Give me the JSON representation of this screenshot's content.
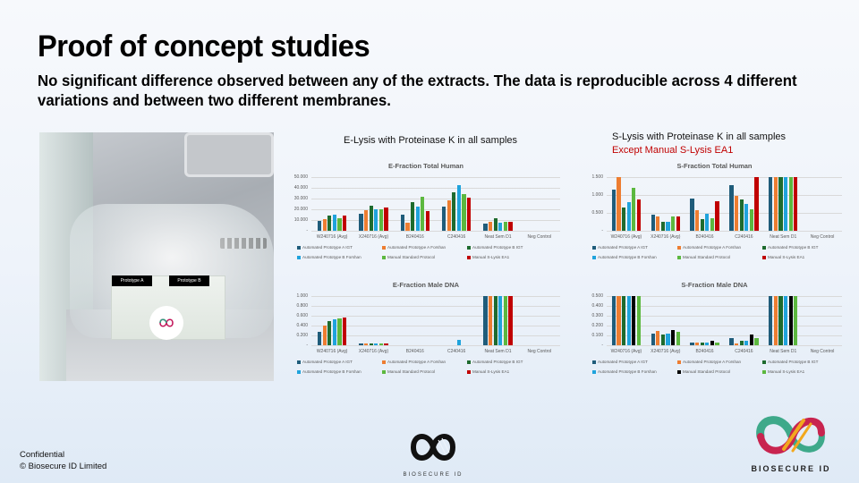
{
  "slide": {
    "title": "Proof of concept studies",
    "subtitle": "No significant difference observed between any of the extracts.  The data is reproducible across 4 different variations and between two different membranes."
  },
  "photo": {
    "label_a": "Prototype A",
    "label_b": "Prototype B"
  },
  "left_heading": "E-Lysis with Proteinase K in all samples",
  "right_heading": {
    "line1": "S-Lysis with Proteinase K in all samples",
    "line2": "Except Manual S-Lysis EA1"
  },
  "footer": {
    "line1": "Confidential",
    "line2": "© Biosecure ID Limited",
    "logo_center_text": "BIOSECURE ID",
    "logo_right_text": "BIOSECURE ID"
  },
  "colors": {
    "accent_red": "#c00000",
    "series_dark_blue": "#1f5c7a",
    "series_orange": "#ed7d31",
    "series_dark_green": "#1e6b2e",
    "series_light_blue": "#1fa3dc",
    "series_light_green": "#5cb83f",
    "series_red": "#c00000",
    "series_black": "#000000"
  },
  "chart_data": [
    {
      "type": "bar",
      "title": "E-Fraction Total Human",
      "xlabel": "",
      "ylabel": "",
      "ylim": [
        0,
        50
      ],
      "yticks": [
        "50.000",
        "40.000",
        "30.000",
        "20.000",
        "10.000",
        "-"
      ],
      "grid": true,
      "legend_position": "bottom",
      "categories": [
        "W240716 (Avg)",
        "X240716 (Avg)",
        "B240416",
        "C240416",
        "Neat Sem D1",
        "Neg Control"
      ],
      "series": [
        {
          "name": "Automated Prototype A IGT",
          "color": "#1f5c7a",
          "values": [
            9.5,
            16,
            15,
            22.5,
            7,
            0
          ]
        },
        {
          "name": "Automated Prototype A Forshan",
          "color": "#ed7d31",
          "values": [
            11,
            19.5,
            7.5,
            28.5,
            8.5,
            0
          ]
        },
        {
          "name": "Automated Prototype B IGT",
          "color": "#1e6b2e",
          "values": [
            14.5,
            23,
            27,
            36,
            12,
            0
          ]
        },
        {
          "name": "Automated Prototype B Forshan",
          "color": "#1fa3dc",
          "values": [
            15,
            20,
            22.5,
            42.5,
            7.5,
            0
          ]
        },
        {
          "name": "Manual Standard Protocol",
          "color": "#5cb83f",
          "values": [
            12,
            20,
            32,
            34,
            8.5,
            0
          ]
        },
        {
          "name": "Manual S-Lysis EA1",
          "color": "#c00000",
          "values": [
            14.5,
            22,
            18,
            31,
            8.5,
            0
          ]
        }
      ]
    },
    {
      "type": "bar",
      "title": "E-Fraction Male DNA",
      "xlabel": "",
      "ylabel": "",
      "ylim": [
        0,
        1.0
      ],
      "yticks": [
        "1.000",
        "0.800",
        "0.600",
        "0.400",
        "0.200",
        "-"
      ],
      "grid": true,
      "legend_position": "bottom",
      "categories": [
        "W240716 (Avg)",
        "X240716 (Avg)",
        "B240416",
        "C240416",
        "Neat Sem D1",
        "Neg Control"
      ],
      "series": [
        {
          "name": "Automated Prototype A IGT",
          "color": "#1f5c7a",
          "values": [
            0.28,
            0.03,
            0,
            0,
            1.0,
            0
          ]
        },
        {
          "name": "Automated Prototype A Forshan",
          "color": "#ed7d31",
          "values": [
            0.4,
            0.03,
            0,
            0,
            1.0,
            0
          ]
        },
        {
          "name": "Automated Prototype B IGT",
          "color": "#1e6b2e",
          "values": [
            0.49,
            0.03,
            0,
            0,
            1.0,
            0
          ]
        },
        {
          "name": "Automated Prototype B Forshan",
          "color": "#1fa3dc",
          "values": [
            0.52,
            0.03,
            0,
            0.11,
            1.0,
            0
          ]
        },
        {
          "name": "Manual Standard Protocol",
          "color": "#5cb83f",
          "values": [
            0.54,
            0.03,
            0,
            0,
            1.0,
            0
          ]
        },
        {
          "name": "Manual S-Lysis EA1",
          "color": "#c00000",
          "values": [
            0.56,
            0.03,
            0,
            0,
            1.0,
            0
          ]
        }
      ]
    },
    {
      "type": "bar",
      "title": "S-Fraction Total Human",
      "xlabel": "",
      "ylabel": "",
      "ylim": [
        0,
        1.6
      ],
      "yticks": [
        "1.500",
        "1.000",
        "0.500",
        "-"
      ],
      "grid": true,
      "legend_position": "bottom",
      "categories": [
        "W240716 (Avg)",
        "X240716 (Avg)",
        "B240416",
        "C240416",
        "Neat Sem D1",
        "Neg Control"
      ],
      "series": [
        {
          "name": "Automated Prototype A IGT",
          "color": "#1f5c7a",
          "values": [
            1.24,
            0.48,
            0.96,
            1.35,
            1.6,
            0
          ]
        },
        {
          "name": "Automated Prototype A Forshan",
          "color": "#ed7d31",
          "values": [
            1.6,
            0.42,
            0.62,
            1.05,
            1.6,
            0
          ]
        },
        {
          "name": "Automated Prototype B IGT",
          "color": "#1e6b2e",
          "values": [
            0.7,
            0.27,
            0.35,
            0.94,
            1.6,
            0
          ]
        },
        {
          "name": "Automated Prototype B Forshan",
          "color": "#1fa3dc",
          "values": [
            0.86,
            0.27,
            0.51,
            0.79,
            1.6,
            0
          ]
        },
        {
          "name": "Manual Standard Protocol",
          "color": "#5cb83f",
          "values": [
            1.27,
            0.42,
            0.37,
            0.64,
            1.6,
            0
          ]
        },
        {
          "name": "Manual S-Lysis EA1",
          "color": "#c00000",
          "values": [
            0.93,
            0.43,
            0.88,
            1.6,
            1.6,
            0
          ]
        }
      ]
    },
    {
      "type": "bar",
      "title": "S-Fraction Male DNA",
      "xlabel": "",
      "ylabel": "",
      "ylim": [
        0,
        0.5
      ],
      "yticks": [
        "0.500",
        "0.400",
        "0.300",
        "0.200",
        "0.100",
        "-"
      ],
      "grid": true,
      "legend_position": "bottom",
      "categories": [
        "W240716 (Avg)",
        "X240716 (Avg)",
        "B240416",
        "C240416",
        "Neat Sem D1",
        "Neg Control"
      ],
      "series": [
        {
          "name": "Automated Prototype A IGT",
          "color": "#1f5c7a",
          "values": [
            0.5,
            0.12,
            0.025,
            0.075,
            0.5,
            0
          ]
        },
        {
          "name": "Automated Prototype A Forshan",
          "color": "#ed7d31",
          "values": [
            0.5,
            0.15,
            0.025,
            0.02,
            0.5,
            0
          ]
        },
        {
          "name": "Automated Prototype B IGT",
          "color": "#1e6b2e",
          "values": [
            0.5,
            0.11,
            0.025,
            0.045,
            0.5,
            0
          ]
        },
        {
          "name": "Automated Prototype B Forshan",
          "color": "#1fa3dc",
          "values": [
            0.5,
            0.12,
            0.025,
            0.045,
            0.5,
            0
          ]
        },
        {
          "name": "Manual Standard Protocol",
          "color": "#000000",
          "values": [
            0.5,
            0.155,
            0.045,
            0.105,
            0.5,
            0
          ]
        },
        {
          "name": "Manual S-Lysis EA1",
          "color": "#5cb83f",
          "values": [
            0.5,
            0.135,
            0.025,
            0.075,
            0.5,
            0
          ]
        }
      ]
    }
  ]
}
